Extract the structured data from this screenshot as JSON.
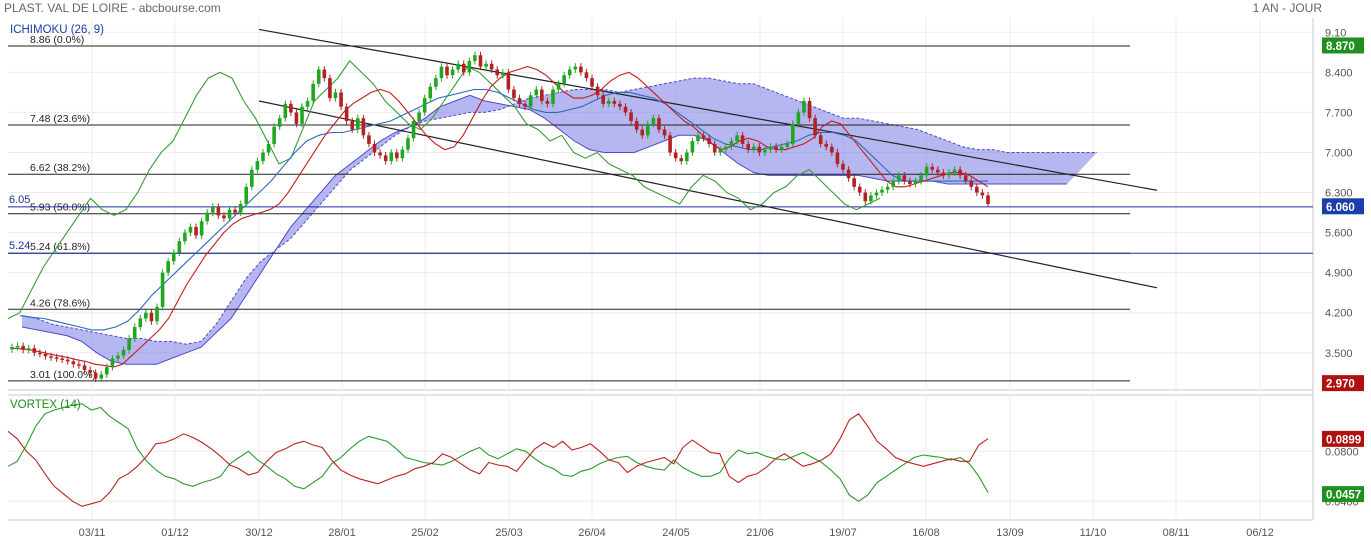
{
  "header": {
    "instrument": "PLAST. VAL DE LOIRE - abcbourse.com",
    "period": "1 AN - JOUR"
  },
  "colors": {
    "up": "#21a621",
    "down": "#b22222",
    "cloud": "#7a7ae6",
    "vi_plus": "#2c9a2c",
    "vi_minus": "#c02020",
    "tenkan": "#c41e1e",
    "kijun": "#2b6cb8",
    "chikou": "#3a9a3a"
  },
  "chart_data": [
    {
      "type": "candlestick",
      "title": "ICHIMOKU (26, 9)",
      "ylim": [
        2.85,
        9.35
      ],
      "yticks": [
        "9.10",
        "8.400",
        "7.700",
        "7.000",
        "6.300",
        "5.600",
        "4.900",
        "4.200",
        "3.500"
      ],
      "xticks": [
        "03/11",
        "01/12",
        "30/12",
        "28/01",
        "25/02",
        "25/03",
        "26/04",
        "24/05",
        "21/06",
        "19/07",
        "16/08",
        "13/09",
        "11/10",
        "08/11",
        "06/12"
      ],
      "close": [
        3.6,
        3.62,
        3.55,
        3.58,
        3.5,
        3.48,
        3.44,
        3.42,
        3.4,
        3.38,
        3.35,
        3.3,
        3.28,
        3.2,
        3.15,
        3.05,
        3.12,
        3.25,
        3.4,
        3.45,
        3.55,
        3.75,
        3.95,
        4.1,
        4.2,
        4.05,
        4.3,
        4.9,
        5.1,
        5.25,
        5.45,
        5.6,
        5.7,
        5.55,
        5.8,
        5.95,
        6.05,
        5.9,
        5.85,
        6.0,
        5.95,
        6.1,
        6.4,
        6.7,
        6.85,
        7.0,
        7.15,
        7.45,
        7.6,
        7.85,
        7.7,
        7.5,
        7.8,
        7.9,
        8.2,
        8.45,
        8.3,
        7.95,
        8.05,
        7.8,
        7.55,
        7.4,
        7.6,
        7.3,
        7.15,
        7.0,
        6.95,
        6.85,
        7.0,
        6.9,
        7.05,
        7.25,
        7.55,
        7.7,
        7.95,
        8.15,
        8.3,
        8.5,
        8.35,
        8.45,
        8.55,
        8.4,
        8.6,
        8.7,
        8.5,
        8.55,
        8.45,
        8.35,
        8.4,
        8.1,
        7.95,
        7.85,
        7.8,
        8.0,
        8.1,
        7.9,
        7.85,
        8.1,
        8.2,
        8.35,
        8.45,
        8.5,
        8.4,
        8.3,
        8.15,
        8.0,
        7.85,
        7.9,
        7.85,
        7.8,
        7.7,
        7.55,
        7.4,
        7.3,
        7.5,
        7.6,
        7.4,
        7.3,
        7.0,
        6.9,
        6.85,
        7.0,
        7.2,
        7.3,
        7.25,
        7.15,
        7.0,
        7.05,
        7.1,
        7.2,
        7.3,
        7.15,
        7.05,
        7.1,
        7.0,
        7.05,
        7.1,
        7.05,
        7.1,
        7.15,
        7.5,
        7.7,
        7.9,
        7.6,
        7.3,
        7.15,
        7.1,
        7.0,
        6.8,
        6.7,
        6.55,
        6.4,
        6.3,
        6.15,
        6.25,
        6.3,
        6.35,
        6.4,
        6.5,
        6.6,
        6.5,
        6.45,
        6.5,
        6.6,
        6.75,
        6.7,
        6.65,
        6.6,
        6.65,
        6.7,
        6.6,
        6.5,
        6.4,
        6.3,
        6.25,
        6.1
      ],
      "tenkan": [
        3.58,
        3.57,
        3.55,
        3.52,
        3.48,
        3.45,
        3.42,
        3.38,
        3.35,
        3.3,
        3.28,
        3.25,
        3.3,
        3.45,
        3.6,
        3.75,
        3.9,
        4.1,
        4.4,
        4.7,
        4.95,
        5.2,
        5.4,
        5.6,
        5.75,
        5.85,
        5.9,
        5.95,
        6.0,
        6.1,
        6.3,
        6.55,
        6.8,
        7.05,
        7.3,
        7.5,
        7.7,
        7.85,
        7.95,
        8.05,
        8.1,
        8.05,
        7.9,
        7.7,
        7.5,
        7.3,
        7.15,
        7.05,
        7.1,
        7.3,
        7.6,
        7.9,
        8.15,
        8.3,
        8.4,
        8.45,
        8.5,
        8.45,
        8.35,
        8.2,
        8.05,
        7.95,
        7.95,
        8.0,
        8.1,
        8.25,
        8.35,
        8.4,
        8.3,
        8.15,
        8.0,
        7.85,
        7.7,
        7.55,
        7.45,
        7.3,
        7.15,
        7.05,
        7.1,
        7.2,
        7.25,
        7.2,
        7.1,
        7.05,
        7.05,
        7.1,
        7.15,
        7.25,
        7.45,
        7.55,
        7.5,
        7.3,
        7.1,
        6.9,
        6.7,
        6.5,
        6.4,
        6.4,
        6.45,
        6.5,
        6.55,
        6.6,
        6.65,
        6.65,
        6.6,
        6.5,
        6.4
      ],
      "kijun": [
        4.15,
        4.12,
        4.1,
        4.05,
        4.0,
        3.95,
        3.9,
        3.9,
        3.95,
        4.05,
        4.25,
        4.5,
        4.7,
        4.9,
        5.1,
        5.3,
        5.5,
        5.7,
        5.9,
        6.1,
        6.3,
        6.5,
        6.75,
        7.0,
        7.2,
        7.3,
        7.35,
        7.35,
        7.4,
        7.45,
        7.5,
        7.55,
        7.65,
        7.75,
        7.85,
        7.95,
        8.0,
        8.05,
        8.1,
        8.1,
        8.05,
        7.95,
        7.85,
        7.75,
        7.7,
        7.7,
        7.75,
        7.8,
        7.9,
        8.0,
        8.05,
        8.05,
        8.0,
        7.95,
        7.85,
        7.7,
        7.55,
        7.4,
        7.25,
        7.15,
        7.1,
        7.05,
        7.05,
        7.1,
        7.15,
        7.2,
        7.3,
        7.35,
        7.35,
        7.3,
        7.2,
        7.0,
        6.8,
        6.6,
        6.5,
        6.5,
        6.5,
        6.5,
        6.5,
        6.5,
        6.5,
        6.5
      ],
      "chikou": [
        4.1,
        4.2,
        4.6,
        5.0,
        5.3,
        5.6,
        5.9,
        6.2,
        6.0,
        5.9,
        6.0,
        6.3,
        6.7,
        7.0,
        7.2,
        7.6,
        8.0,
        8.3,
        8.4,
        8.3,
        7.9,
        7.6,
        7.2,
        6.8,
        6.9,
        7.4,
        7.9,
        8.1,
        8.3,
        8.6,
        8.4,
        8.2,
        7.9,
        7.7,
        7.5,
        7.4,
        7.6,
        7.9,
        8.2,
        8.5,
        8.4,
        8.2,
        8.0,
        7.8,
        7.5,
        7.4,
        7.2,
        7.3,
        7.0,
        6.9,
        7.0,
        6.8,
        6.7,
        6.6,
        6.4,
        6.3,
        6.2,
        6.1,
        6.4,
        6.6,
        6.5,
        6.3,
        6.2,
        6.0,
        6.1,
        6.3,
        6.4,
        6.6,
        6.7,
        6.5,
        6.3,
        6.1,
        6.0,
        6.1,
        6.2
      ],
      "cloud_top": [
        4.15,
        4.1,
        4.0,
        3.95,
        3.9,
        3.85,
        3.8,
        3.75,
        3.75,
        3.7,
        3.7,
        3.65,
        3.7,
        4.0,
        4.4,
        4.8,
        5.1,
        5.3,
        5.5,
        5.8,
        6.1,
        6.4,
        6.7,
        6.9,
        7.1,
        7.3,
        7.45,
        7.55,
        7.6,
        7.65,
        7.7,
        7.7,
        7.75,
        7.85,
        7.95,
        8.0,
        8.05,
        8.1,
        8.1,
        8.1,
        8.05,
        8.1,
        8.15,
        8.2,
        8.25,
        8.3,
        8.3,
        8.25,
        8.2,
        8.2,
        8.1,
        8.0,
        7.9,
        7.8,
        7.7,
        7.6,
        7.6,
        7.55,
        7.5,
        7.45,
        7.4,
        7.3,
        7.2,
        7.1,
        7.05,
        7.05,
        7.0,
        7.0,
        7.0,
        7.0,
        7.0,
        7.0,
        7.0
      ],
      "cloud_bottom": [
        3.95,
        3.9,
        3.85,
        3.8,
        3.7,
        3.5,
        3.35,
        3.3,
        3.3,
        3.3,
        3.4,
        3.5,
        3.6,
        3.85,
        4.1,
        4.5,
        4.9,
        5.3,
        5.7,
        6.0,
        6.3,
        6.6,
        6.8,
        7.0,
        7.2,
        7.35,
        7.45,
        7.6,
        7.8,
        7.9,
        8.0,
        7.9,
        7.85,
        7.8,
        7.75,
        7.6,
        7.4,
        7.2,
        7.05,
        7.0,
        7.0,
        7.0,
        7.1,
        7.2,
        7.3,
        7.3,
        7.2,
        7.0,
        6.8,
        6.65,
        6.6,
        6.6,
        6.6,
        6.6,
        6.6,
        6.6,
        6.6,
        6.55,
        6.5,
        6.5,
        6.5,
        6.5,
        6.45,
        6.45,
        6.45,
        6.45,
        6.45,
        6.45,
        6.45,
        6.45,
        6.45
      ],
      "fibonacci": [
        {
          "label": "8.86  (0.0%)",
          "value": 8.86
        },
        {
          "label": "7.48  (23.6%)",
          "value": 7.48
        },
        {
          "label": "6.62  (38.2%)",
          "value": 6.62
        },
        {
          "label": "5.93  (50.0%)",
          "value": 5.93
        },
        {
          "label": "5.24  (61.8%)",
          "value": 5.24
        },
        {
          "label": "4.26  (78.6%)",
          "value": 4.26
        },
        {
          "label": "3.01  (100.0%)",
          "value": 3.01
        }
      ],
      "hlines": [
        {
          "label": "6.05",
          "value": 6.05
        },
        {
          "label": "5.24",
          "value": 5.24
        }
      ],
      "trendlines": [
        {
          "from": [
            "30/12",
            9.15
          ],
          "to": [
            "13/09",
            6.8
          ]
        },
        {
          "from": [
            "30/12",
            7.9
          ],
          "to": [
            "13/09",
            5.17
          ]
        }
      ],
      "last_value_badges": [
        {
          "label": "8.870",
          "value": 8.87,
          "color": "#1f8f1f"
        },
        {
          "label": "6.060",
          "value": 6.06,
          "color": "#1a3fa8"
        },
        {
          "label": "2.970",
          "value": 2.97,
          "color": "#b01010"
        }
      ]
    },
    {
      "type": "line",
      "title": "VORTEX (14)",
      "ylim": [
        0.025,
        0.125
      ],
      "yticks": [
        "0.0800",
        "0.0400"
      ],
      "series": [
        {
          "values": [
            0.068,
            0.072,
            0.085,
            0.1,
            0.11,
            0.113,
            0.115,
            0.117,
            0.118,
            0.113,
            0.115,
            0.108,
            0.103,
            0.098,
            0.082,
            0.072,
            0.065,
            0.06,
            0.058,
            0.054,
            0.052,
            0.055,
            0.057,
            0.06,
            0.07,
            0.075,
            0.08,
            0.073,
            0.068,
            0.062,
            0.058,
            0.052,
            0.05,
            0.055,
            0.06,
            0.07,
            0.075,
            0.082,
            0.088,
            0.092,
            0.09,
            0.088,
            0.082,
            0.075,
            0.073,
            0.071,
            0.07,
            0.069,
            0.072,
            0.076,
            0.08,
            0.083,
            0.077,
            0.074,
            0.078,
            0.082,
            0.08,
            0.074,
            0.069,
            0.066,
            0.061,
            0.06,
            0.064,
            0.066,
            0.07,
            0.073,
            0.075,
            0.076,
            0.071,
            0.068,
            0.066,
            0.065,
            0.073,
            0.067,
            0.063,
            0.06,
            0.06,
            0.063,
            0.074,
            0.081,
            0.078,
            0.079,
            0.076,
            0.074,
            0.073,
            0.076,
            0.079,
            0.075,
            0.071,
            0.065,
            0.058,
            0.045,
            0.04,
            0.045,
            0.055,
            0.06,
            0.065,
            0.07,
            0.075,
            0.077,
            0.076,
            0.075,
            0.073,
            0.075,
            0.07,
            0.06,
            0.047
          ]
        },
        {
          "values": [
            0.096,
            0.09,
            0.08,
            0.073,
            0.062,
            0.052,
            0.046,
            0.04,
            0.036,
            0.038,
            0.04,
            0.047,
            0.058,
            0.062,
            0.068,
            0.076,
            0.086,
            0.087,
            0.09,
            0.094,
            0.091,
            0.087,
            0.082,
            0.076,
            0.069,
            0.066,
            0.061,
            0.063,
            0.072,
            0.079,
            0.082,
            0.086,
            0.088,
            0.085,
            0.083,
            0.073,
            0.065,
            0.061,
            0.058,
            0.056,
            0.054,
            0.057,
            0.06,
            0.062,
            0.066,
            0.068,
            0.071,
            0.078,
            0.075,
            0.07,
            0.065,
            0.062,
            0.071,
            0.069,
            0.068,
            0.064,
            0.073,
            0.082,
            0.087,
            0.083,
            0.088,
            0.081,
            0.083,
            0.086,
            0.08,
            0.073,
            0.071,
            0.063,
            0.068,
            0.071,
            0.073,
            0.075,
            0.07,
            0.083,
            0.089,
            0.084,
            0.079,
            0.078,
            0.06,
            0.055,
            0.06,
            0.062,
            0.067,
            0.074,
            0.078,
            0.073,
            0.068,
            0.07,
            0.073,
            0.078,
            0.09,
            0.105,
            0.11,
            0.1,
            0.088,
            0.082,
            0.075,
            0.072,
            0.07,
            0.068,
            0.07,
            0.072,
            0.074,
            0.072,
            0.072,
            0.085,
            0.09
          ]
        }
      ],
      "last_value_badges": [
        {
          "label": "0.0899",
          "value": 0.0899,
          "color": "#b01010"
        },
        {
          "label": "0.0457",
          "value": 0.0457,
          "color": "#1f8f1f"
        }
      ]
    }
  ]
}
